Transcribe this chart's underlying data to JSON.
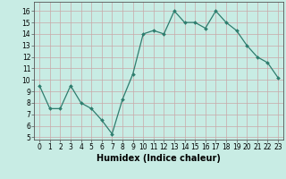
{
  "x": [
    0,
    1,
    2,
    3,
    4,
    5,
    6,
    7,
    8,
    9,
    10,
    11,
    12,
    13,
    14,
    15,
    16,
    17,
    18,
    19,
    20,
    21,
    22,
    23
  ],
  "y": [
    9.5,
    7.5,
    7.5,
    9.5,
    8.0,
    7.5,
    6.5,
    5.3,
    8.3,
    10.5,
    14.0,
    14.3,
    14.0,
    16.0,
    15.0,
    15.0,
    14.5,
    16.0,
    15.0,
    14.3,
    13.0,
    12.0,
    11.5,
    10.2
  ],
  "line_color": "#2e7d6e",
  "marker": "D",
  "marker_size": 2.0,
  "bg_color": "#c8ece4",
  "grid_color": "#b0d8cc",
  "xlabel": "Humidex (Indice chaleur)",
  "xlim": [
    -0.5,
    23.5
  ],
  "ylim": [
    4.8,
    16.8
  ],
  "yticks": [
    5,
    6,
    7,
    8,
    9,
    10,
    11,
    12,
    13,
    14,
    15,
    16
  ],
  "xticks": [
    0,
    1,
    2,
    3,
    4,
    5,
    6,
    7,
    8,
    9,
    10,
    11,
    12,
    13,
    14,
    15,
    16,
    17,
    18,
    19,
    20,
    21,
    22,
    23
  ],
  "tick_fontsize": 5.5,
  "xlabel_fontsize": 7.0,
  "linewidth": 0.9
}
